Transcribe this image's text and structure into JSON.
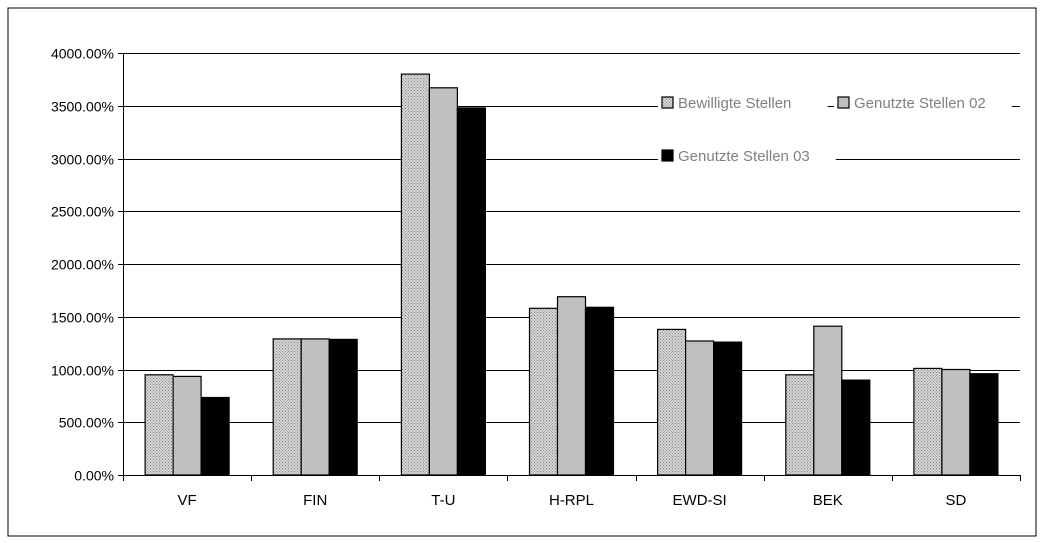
{
  "chart_data": {
    "type": "bar",
    "title": "",
    "xlabel": "",
    "ylabel": "",
    "categories": [
      "VF",
      "FIN",
      "T-U",
      "H-RPL",
      "EWD-SI",
      "BEK",
      "SD"
    ],
    "ylim": [
      0,
      4000
    ],
    "yticks": [
      0,
      500,
      1000,
      1500,
      2000,
      2500,
      3000,
      3500,
      4000
    ],
    "ytick_labels": [
      "0.00%",
      "500.00%",
      "1000.00%",
      "1500.00%",
      "2000.00%",
      "2500.00%",
      "3000.00%",
      "3500.00%",
      "4000.00%"
    ],
    "grid": true,
    "legend_position": "top-right",
    "series": [
      {
        "name": "Bewilligte Stellen",
        "values": [
          950,
          1290,
          3800,
          1580,
          1380,
          950,
          1010
        ],
        "color": "#c8c8c8",
        "pattern": "dotted"
      },
      {
        "name": "Genutzte Stellen 02",
        "values": [
          935,
          1290,
          3670,
          1690,
          1270,
          1410,
          1000
        ],
        "color": "#c0c0c0",
        "pattern": "solid"
      },
      {
        "name": "Genutzte Stellen 03",
        "values": [
          735,
          1285,
          3480,
          1590,
          1260,
          900,
          960
        ],
        "color": "#000000",
        "pattern": "solid"
      }
    ]
  }
}
